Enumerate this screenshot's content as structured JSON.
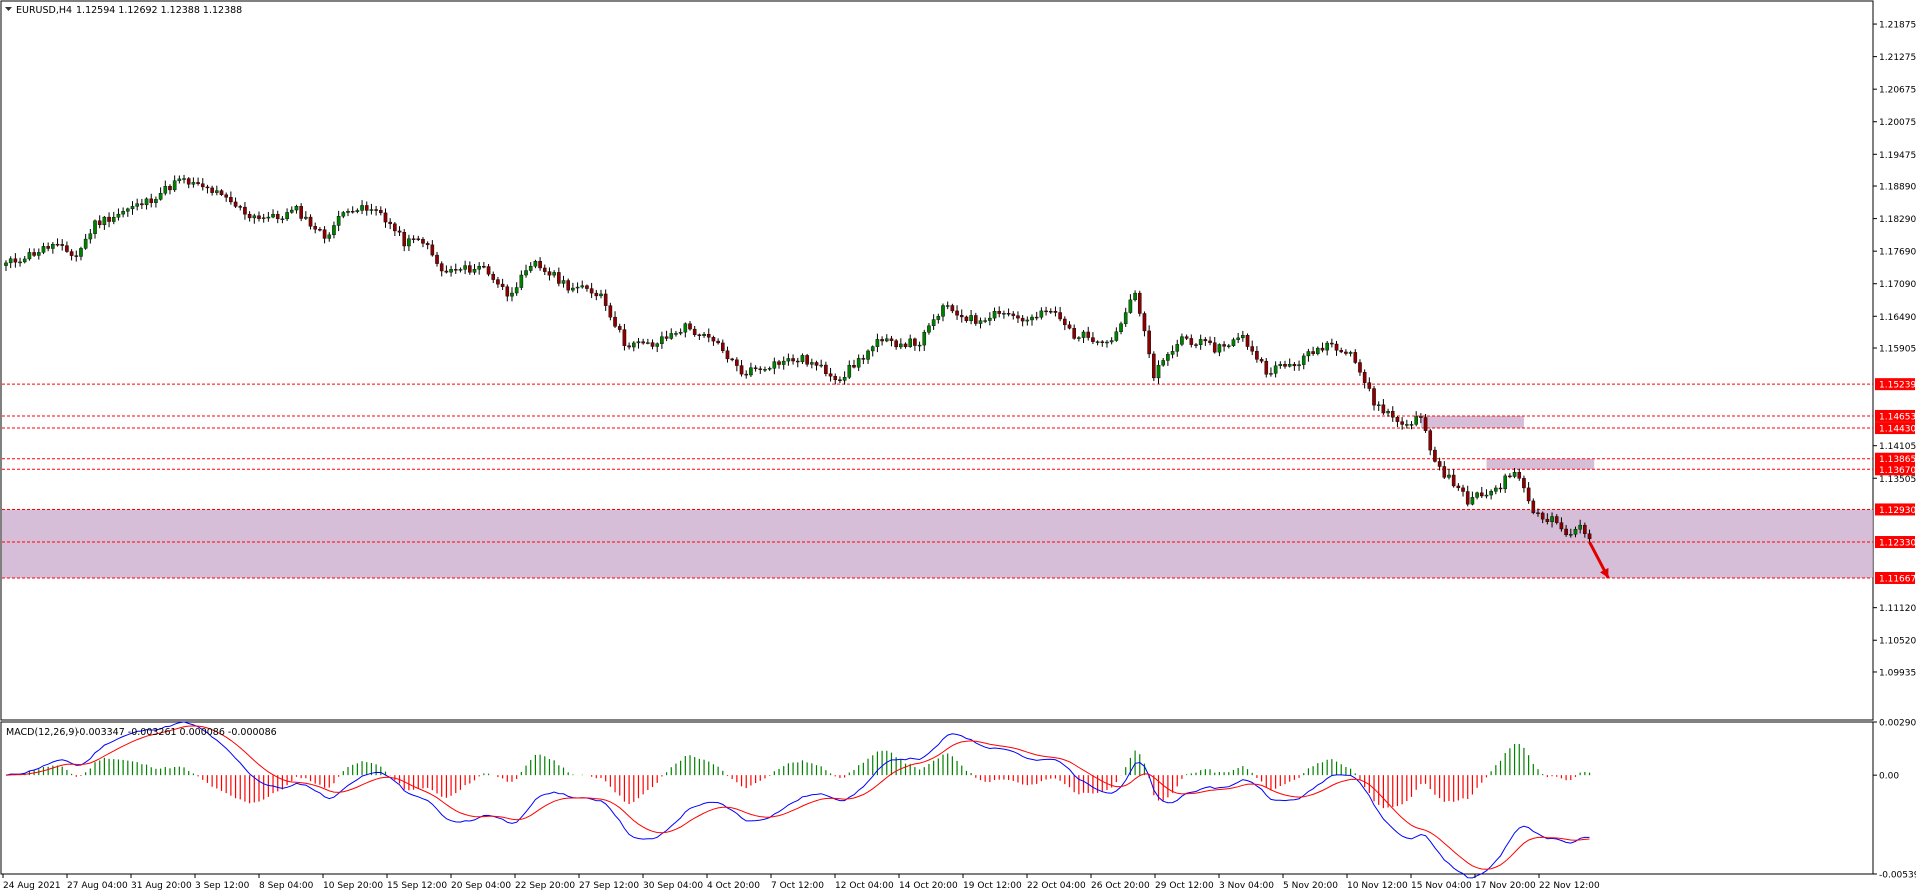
{
  "header": {
    "symbol_label": "EURUSD,H4",
    "ohlc_label": "1.12594 1.12692 1.12388 1.12388"
  },
  "macd": {
    "label": "MACD(12,26,9)",
    "values_label": "-0.003347 -0.003261 0.000086 -0.000086"
  },
  "colors": {
    "bull": "#008000",
    "bear": "#8b0000",
    "zone": "#c9a8cb",
    "level": "#ff0000",
    "macd_line": "#0000ff",
    "signal_line": "#ff0000",
    "hist_pos": "#008000",
    "hist_neg": "#ff0000",
    "arrow": "#e00000"
  },
  "chart_data": {
    "type": "candlestick",
    "timeframe": "H4",
    "x_tick_labels": [
      "24 Aug 2021",
      "27 Aug 04:00",
      "31 Aug 20:00",
      "3 Sep 12:00",
      "8 Sep 04:00",
      "10 Sep 20:00",
      "15 Sep 12:00",
      "20 Sep 04:00",
      "22 Sep 20:00",
      "27 Sep 12:00",
      "30 Sep 04:00",
      "4 Oct 20:00",
      "7 Oct 12:00",
      "12 Oct 04:00",
      "14 Oct 20:00",
      "19 Oct 12:00",
      "22 Oct 04:00",
      "26 Oct 20:00",
      "29 Oct 12:00",
      "3 Nov 04:00",
      "5 Nov 20:00",
      "10 Nov 12:00",
      "15 Nov 04:00",
      "17 Nov 20:00",
      "22 Nov 12:00"
    ],
    "price_axis": {
      "ylim": [
        1.0905,
        1.223
      ],
      "tick_labels": [
        "1.21875",
        "1.21275",
        "1.20675",
        "1.20075",
        "1.19475",
        "1.18890",
        "1.18290",
        "1.17690",
        "1.17090",
        "1.16490",
        "1.15905",
        "1.14105",
        "1.13505",
        "1.11120",
        "1.10520",
        "1.09935"
      ]
    },
    "close_anchors": [
      {
        "bar": 0,
        "close": 1.1745
      },
      {
        "bar": 10,
        "close": 1.178
      },
      {
        "bar": 15,
        "close": 1.176
      },
      {
        "bar": 19,
        "close": 1.182
      },
      {
        "bar": 30,
        "close": 1.186
      },
      {
        "bar": 37,
        "close": 1.19
      },
      {
        "bar": 44,
        "close": 1.188
      },
      {
        "bar": 52,
        "close": 1.1835
      },
      {
        "bar": 58,
        "close": 1.183
      },
      {
        "bar": 62,
        "close": 1.1845
      },
      {
        "bar": 68,
        "close": 1.1795
      },
      {
        "bar": 73,
        "close": 1.185
      },
      {
        "bar": 80,
        "close": 1.184
      },
      {
        "bar": 85,
        "close": 1.1785
      },
      {
        "bar": 89,
        "close": 1.179
      },
      {
        "bar": 93,
        "close": 1.173
      },
      {
        "bar": 102,
        "close": 1.174
      },
      {
        "bar": 107,
        "close": 1.169
      },
      {
        "bar": 113,
        "close": 1.1745
      },
      {
        "bar": 120,
        "close": 1.1705
      },
      {
        "bar": 127,
        "close": 1.169
      },
      {
        "bar": 132,
        "close": 1.16
      },
      {
        "bar": 138,
        "close": 1.1595
      },
      {
        "bar": 145,
        "close": 1.163
      },
      {
        "bar": 152,
        "close": 1.1595
      },
      {
        "bar": 157,
        "close": 1.1545
      },
      {
        "bar": 165,
        "close": 1.1565
      },
      {
        "bar": 170,
        "close": 1.157
      },
      {
        "bar": 178,
        "close": 1.1535
      },
      {
        "bar": 186,
        "close": 1.16
      },
      {
        "bar": 195,
        "close": 1.16
      },
      {
        "bar": 200,
        "close": 1.1665
      },
      {
        "bar": 207,
        "close": 1.164
      },
      {
        "bar": 212,
        "close": 1.166
      },
      {
        "bar": 218,
        "close": 1.164
      },
      {
        "bar": 223,
        "close": 1.166
      },
      {
        "bar": 228,
        "close": 1.1615
      },
      {
        "bar": 236,
        "close": 1.1605
      },
      {
        "bar": 241,
        "close": 1.169
      },
      {
        "bar": 245,
        "close": 1.154
      },
      {
        "bar": 251,
        "close": 1.161
      },
      {
        "bar": 258,
        "close": 1.159
      },
      {
        "bar": 264,
        "close": 1.161
      },
      {
        "bar": 269,
        "close": 1.155
      },
      {
        "bar": 275,
        "close": 1.156
      },
      {
        "bar": 282,
        "close": 1.16
      },
      {
        "bar": 287,
        "close": 1.1585
      },
      {
        "bar": 292,
        "close": 1.149
      },
      {
        "bar": 298,
        "close": 1.145
      },
      {
        "bar": 302,
        "close": 1.1462
      },
      {
        "bar": 305,
        "close": 1.138
      },
      {
        "bar": 312,
        "close": 1.131
      },
      {
        "bar": 318,
        "close": 1.133
      },
      {
        "bar": 322,
        "close": 1.1365
      },
      {
        "bar": 326,
        "close": 1.129
      },
      {
        "bar": 331,
        "close": 1.127
      },
      {
        "bar": 334,
        "close": 1.124
      },
      {
        "bar": 336,
        "close": 1.127
      },
      {
        "bar": 338,
        "close": 1.12388
      }
    ],
    "levels": [
      {
        "value": 1.15239,
        "label": "1.15239"
      },
      {
        "value": 1.14653,
        "label": "1.14653"
      },
      {
        "value": 1.1443,
        "label": "1.14430"
      },
      {
        "value": 1.13865,
        "label": "1.13865"
      },
      {
        "value": 1.1367,
        "label": "1.13670"
      },
      {
        "value": 1.1293,
        "label": "1.12930"
      },
      {
        "value": 1.1233,
        "label": "1.12330"
      },
      {
        "value": 1.11667,
        "label": "1.11667"
      }
    ],
    "zones": [
      {
        "from": 1.11667,
        "to": 1.1293,
        "extent": "full"
      },
      {
        "from": 1.1443,
        "to": 1.14653,
        "from_bar": 302,
        "to_bar": 324
      },
      {
        "from": 1.1367,
        "to": 1.13865,
        "from_bar": 316,
        "to_bar": 339
      }
    ],
    "arrow": {
      "from_bar": 338,
      "from_price": 1.1233,
      "to_bar": 342,
      "to_price": 1.1167
    },
    "macd_axis": {
      "ylim": [
        -0.005394,
        0.002901
      ],
      "tick_labels": [
        "0.002901",
        "0.00",
        "-0.005394"
      ]
    }
  }
}
